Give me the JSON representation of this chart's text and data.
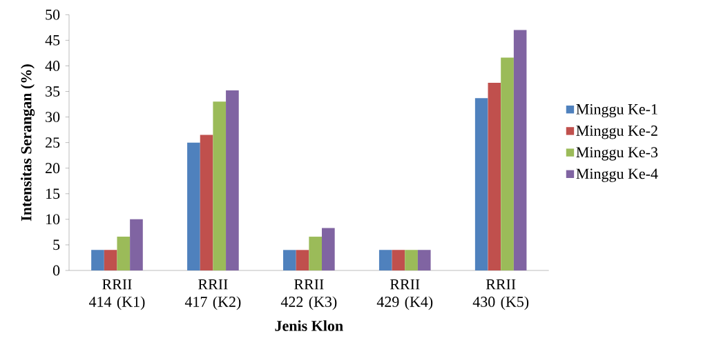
{
  "chart_data": {
    "type": "bar",
    "xlabel": "Jenis Klon",
    "ylabel": "Intensitas Serangan (%)",
    "categories": [
      "RRII 414 (K1)",
      "RRII 417 (K2)",
      "RRII 422 (K3)",
      "RRII 429 (K4)",
      "RRII 430 (K5)"
    ],
    "series": [
      {
        "name": "Minggu Ke-1",
        "color": "#4f81bd",
        "values": [
          4,
          25,
          4,
          4,
          33.7
        ]
      },
      {
        "name": "Minggu Ke-2",
        "color": "#c0504d",
        "values": [
          4,
          26.5,
          4,
          4,
          36.7
        ]
      },
      {
        "name": "Minggu Ke-3",
        "color": "#9bbb59",
        "values": [
          6.6,
          33,
          6.6,
          4,
          41.6
        ]
      },
      {
        "name": "Minggu Ke-4",
        "color": "#8064a2",
        "values": [
          10,
          35.2,
          8.3,
          4,
          47
        ]
      }
    ],
    "ylim": [
      0,
      50
    ],
    "yticks": [
      0,
      5,
      10,
      15,
      20,
      25,
      30,
      35,
      40,
      45,
      50
    ],
    "legend": "right",
    "grid": false
  }
}
